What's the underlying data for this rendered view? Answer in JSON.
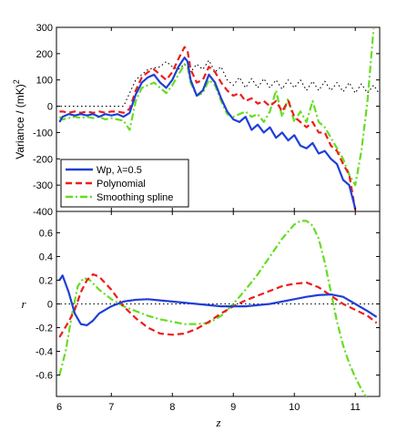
{
  "chart_data": [
    {
      "type": "line",
      "ylabel": "Variance / (mK)",
      "ylabel_superscript": "2",
      "xlim": [
        6.1,
        11.4
      ],
      "ylim": [
        -400,
        300
      ],
      "yticks": [
        -400,
        -300,
        -200,
        -100,
        0,
        100,
        200,
        300
      ],
      "grid": false,
      "legend_position": "bottom-left",
      "series": [
        {
          "name": "Wp, λ=0.5",
          "color": "#1f3fd6",
          "style": "solid",
          "x": [
            6.15,
            6.2,
            6.3,
            6.4,
            6.5,
            6.6,
            6.7,
            6.8,
            6.9,
            7.0,
            7.1,
            7.2,
            7.3,
            7.4,
            7.5,
            7.6,
            7.7,
            7.8,
            7.9,
            8.0,
            8.1,
            8.2,
            8.25,
            8.3,
            8.4,
            8.5,
            8.6,
            8.7,
            8.8,
            8.9,
            9.0,
            9.1,
            9.2,
            9.3,
            9.4,
            9.5,
            9.6,
            9.7,
            9.8,
            9.9,
            10.0,
            10.1,
            10.2,
            10.3,
            10.4,
            10.5,
            10.6,
            10.7,
            10.8,
            10.9,
            11.0
          ],
          "y": [
            -60,
            -40,
            -30,
            -35,
            -30,
            -35,
            -30,
            -40,
            -30,
            -35,
            -30,
            -40,
            -25,
            45,
            90,
            110,
            120,
            90,
            70,
            100,
            150,
            185,
            170,
            100,
            40,
            60,
            120,
            90,
            30,
            -20,
            -50,
            -60,
            -40,
            -90,
            -70,
            -100,
            -80,
            -120,
            -100,
            -130,
            -110,
            -150,
            -160,
            -140,
            -180,
            -170,
            -200,
            -220,
            -280,
            -300,
            -390
          ]
        },
        {
          "name": "Polynomial",
          "color": "#ee1c1c",
          "style": "dashed",
          "x": [
            6.15,
            6.2,
            6.3,
            6.4,
            6.5,
            6.6,
            6.7,
            6.8,
            6.9,
            7.0,
            7.1,
            7.2,
            7.3,
            7.4,
            7.5,
            7.6,
            7.7,
            7.8,
            7.9,
            8.0,
            8.1,
            8.2,
            8.25,
            8.3,
            8.4,
            8.5,
            8.6,
            8.7,
            8.8,
            8.9,
            9.0,
            9.1,
            9.2,
            9.3,
            9.4,
            9.5,
            9.6,
            9.7,
            9.8,
            9.9,
            10.0,
            10.1,
            10.2,
            10.3,
            10.4,
            10.5,
            10.6,
            10.7,
            10.8,
            10.9,
            11.0
          ],
          "y": [
            -20,
            -20,
            -25,
            -20,
            -25,
            -20,
            -25,
            -20,
            -25,
            -20,
            -20,
            -25,
            -10,
            60,
            110,
            130,
            140,
            120,
            100,
            130,
            180,
            225,
            210,
            140,
            90,
            100,
            150,
            130,
            90,
            60,
            40,
            50,
            20,
            30,
            10,
            20,
            0,
            20,
            -20,
            20,
            -40,
            -60,
            -80,
            -60,
            -100,
            -100,
            -150,
            -170,
            -220,
            -260,
            -395
          ]
        },
        {
          "name": "Smoothing spline",
          "color": "#66dd22",
          "style": "dashdot",
          "x": [
            6.15,
            6.2,
            6.3,
            6.4,
            6.5,
            6.6,
            6.7,
            6.8,
            6.9,
            7.0,
            7.1,
            7.2,
            7.3,
            7.4,
            7.5,
            7.6,
            7.7,
            7.8,
            7.9,
            8.0,
            8.1,
            8.2,
            8.25,
            8.3,
            8.4,
            8.5,
            8.6,
            8.7,
            8.8,
            8.9,
            9.0,
            9.1,
            9.2,
            9.3,
            9.4,
            9.5,
            9.6,
            9.7,
            9.8,
            9.9,
            10.0,
            10.1,
            10.2,
            10.3,
            10.4,
            10.5,
            10.6,
            10.7,
            10.8,
            10.9,
            11.0,
            11.1,
            11.2,
            11.3
          ],
          "y": [
            -40,
            -50,
            -45,
            -40,
            -45,
            -40,
            -45,
            -40,
            -50,
            -45,
            -50,
            -55,
            -90,
            20,
            70,
            80,
            90,
            70,
            50,
            80,
            120,
            160,
            150,
            90,
            40,
            50,
            100,
            80,
            20,
            -30,
            -40,
            -30,
            -20,
            -40,
            -30,
            -60,
            -20,
            60,
            -40,
            30,
            -60,
            -20,
            -60,
            20,
            -60,
            -80,
            -120,
            -160,
            -200,
            -260,
            -300,
            -170,
            20,
            295
          ]
        },
        {
          "name": "",
          "color": "#000000",
          "style": "dotted",
          "x": [
            6.1,
            7.2,
            7.4,
            7.6,
            7.8,
            7.9,
            8.0,
            8.1,
            8.2,
            8.3,
            8.4,
            8.5,
            8.6,
            8.7,
            8.8,
            8.9,
            9.0,
            9.1,
            9.2,
            9.3,
            9.4,
            9.5,
            9.6,
            9.7,
            9.8,
            9.9,
            10.0,
            10.1,
            10.2,
            10.3,
            10.4,
            10.5,
            10.6,
            10.7,
            10.8,
            10.9,
            11.0,
            11.1,
            11.2,
            11.3,
            11.4
          ],
          "y": [
            0,
            0,
            100,
            140,
            150,
            170,
            150,
            140,
            160,
            130,
            160,
            140,
            175,
            130,
            150,
            100,
            80,
            110,
            70,
            105,
            70,
            105,
            70,
            100,
            65,
            100,
            70,
            100,
            60,
            95,
            60,
            95,
            60,
            90,
            55,
            90,
            50,
            85,
            50,
            80,
            45
          ]
        }
      ]
    },
    {
      "type": "line",
      "xlabel": "z",
      "ylabel": "r",
      "xlim": [
        6.1,
        11.4
      ],
      "ylim": [
        -0.78,
        0.78
      ],
      "xticks": [
        6,
        7,
        8,
        9,
        10,
        11
      ],
      "yticks": [
        -0.6,
        -0.4,
        -0.2,
        0,
        0.2,
        0.4,
        0.6
      ],
      "grid": false,
      "series": [
        {
          "name": "Wp, λ=0.5",
          "color": "#1f3fd6",
          "style": "solid",
          "x": [
            6.15,
            6.2,
            6.3,
            6.4,
            6.5,
            6.6,
            6.7,
            6.8,
            7.0,
            7.2,
            7.4,
            7.6,
            7.8,
            8.0,
            8.4,
            8.8,
            9.2,
            9.6,
            10.0,
            10.2,
            10.4,
            10.6,
            10.8,
            11.0,
            11.2,
            11.35
          ],
          "y": [
            0.2,
            0.24,
            0.1,
            -0.08,
            -0.17,
            -0.18,
            -0.14,
            -0.08,
            -0.02,
            0.02,
            0.035,
            0.04,
            0.03,
            0.02,
            0.0,
            -0.02,
            -0.02,
            0.0,
            0.04,
            0.06,
            0.075,
            0.08,
            0.06,
            0.0,
            -0.06,
            -0.11
          ]
        },
        {
          "name": "Polynomial",
          "color": "#ee1c1c",
          "style": "dashed",
          "x": [
            6.15,
            6.3,
            6.4,
            6.5,
            6.6,
            6.7,
            6.8,
            7.0,
            7.2,
            7.4,
            7.6,
            7.8,
            8.0,
            8.2,
            8.4,
            8.6,
            8.8,
            9.0,
            9.2,
            9.4,
            9.6,
            9.8,
            10.0,
            10.2,
            10.4,
            10.6,
            10.8,
            11.0,
            11.2,
            11.35
          ],
          "y": [
            -0.28,
            -0.15,
            -0.05,
            0.1,
            0.2,
            0.25,
            0.23,
            0.12,
            -0.02,
            -0.12,
            -0.2,
            -0.25,
            -0.26,
            -0.25,
            -0.21,
            -0.15,
            -0.08,
            -0.02,
            0.03,
            0.07,
            0.11,
            0.15,
            0.17,
            0.18,
            0.14,
            0.07,
            0.0,
            -0.05,
            -0.1,
            -0.16
          ]
        },
        {
          "name": "Smoothing spline",
          "color": "#66dd22",
          "style": "dashdot",
          "x": [
            6.15,
            6.25,
            6.35,
            6.45,
            6.55,
            6.65,
            6.8,
            7.0,
            7.2,
            7.4,
            7.6,
            7.8,
            8.0,
            8.2,
            8.4,
            8.6,
            8.8,
            9.0,
            9.2,
            9.4,
            9.6,
            9.8,
            10.0,
            10.1,
            10.2,
            10.3,
            10.4,
            10.5,
            10.6,
            10.7,
            10.8,
            10.9,
            11.0,
            11.1,
            11.2
          ],
          "y": [
            -0.6,
            -0.4,
            -0.1,
            0.15,
            0.22,
            0.2,
            0.12,
            0.04,
            -0.02,
            -0.06,
            -0.1,
            -0.13,
            -0.15,
            -0.17,
            -0.17,
            -0.16,
            -0.1,
            0.0,
            0.12,
            0.25,
            0.4,
            0.55,
            0.67,
            0.7,
            0.7,
            0.66,
            0.55,
            0.35,
            0.1,
            -0.15,
            -0.35,
            -0.5,
            -0.62,
            -0.72,
            -0.8
          ]
        },
        {
          "name": "",
          "color": "#000000",
          "style": "dotted",
          "x": [
            6.1,
            11.4
          ],
          "y": [
            0,
            0
          ]
        }
      ]
    }
  ]
}
